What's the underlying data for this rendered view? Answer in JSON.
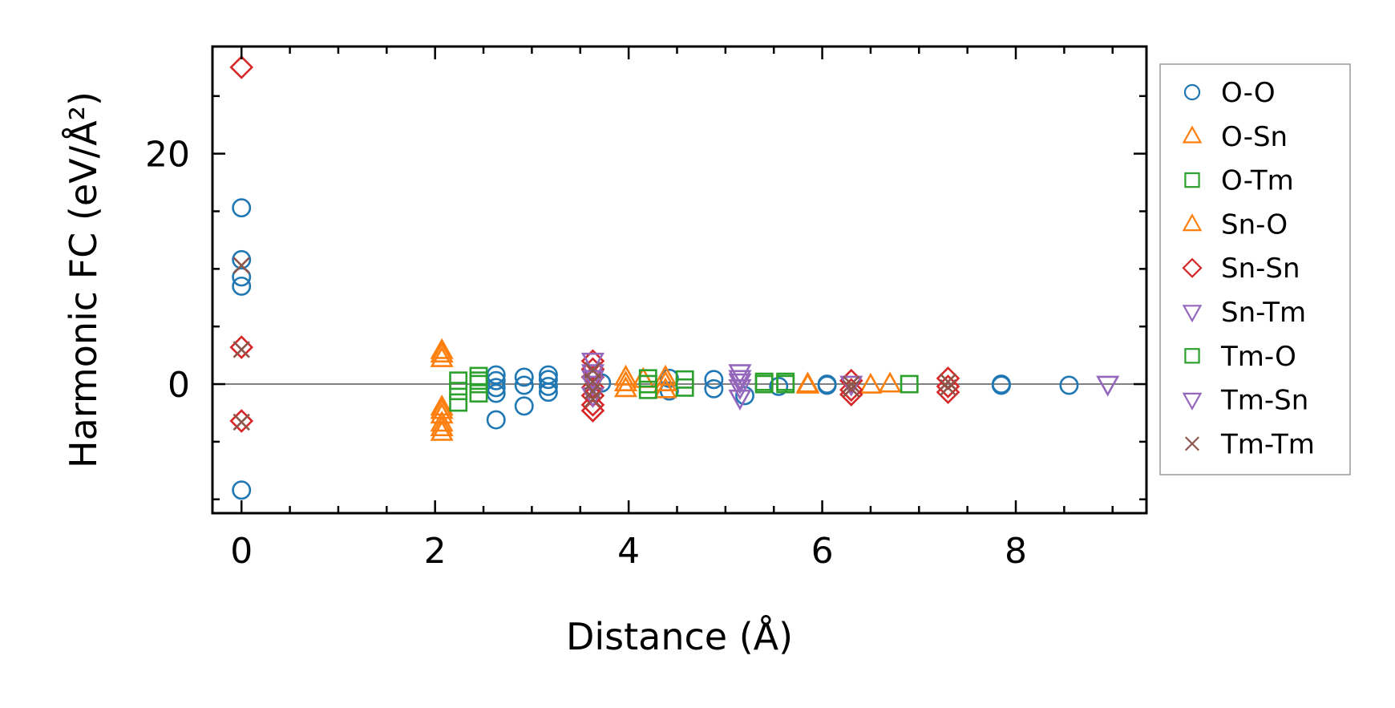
{
  "chart_data": {
    "type": "scatter",
    "title": "",
    "xlabel": "Distance (Å)",
    "ylabel": "Harmonic FC (eV/Å²)",
    "xlim": [
      -0.3,
      9.35
    ],
    "ylim": [
      -11.2,
      29.3
    ],
    "xticks": [
      0,
      2,
      4,
      6,
      8
    ],
    "yticks": [
      0,
      20
    ],
    "legend_position": "outside-right",
    "series": [
      {
        "name": "O-O",
        "marker": "circle",
        "color": "#1f77b4",
        "points": [
          [
            0,
            15.3
          ],
          [
            0,
            10.8
          ],
          [
            0,
            9.3
          ],
          [
            0,
            8.5
          ],
          [
            0,
            -9.2
          ],
          [
            2.63,
            0.8
          ],
          [
            2.63,
            0.3
          ],
          [
            2.63,
            -0.3
          ],
          [
            2.63,
            -0.8
          ],
          [
            2.63,
            -3.1
          ],
          [
            2.92,
            0.6
          ],
          [
            2.92,
            -0.1
          ],
          [
            2.92,
            -1.9
          ],
          [
            3.17,
            0.8
          ],
          [
            3.17,
            0.4
          ],
          [
            3.17,
            -0.2
          ],
          [
            3.17,
            -0.7
          ],
          [
            3.72,
            0.1
          ],
          [
            4.42,
            0.5
          ],
          [
            4.42,
            -0.6
          ],
          [
            4.88,
            0.4
          ],
          [
            4.88,
            -0.4
          ],
          [
            5.2,
            -1.0
          ],
          [
            5.55,
            -0.2
          ],
          [
            6.05,
            0.0
          ],
          [
            6.05,
            -0.1
          ],
          [
            7.85,
            0.0
          ],
          [
            7.85,
            -0.1
          ],
          [
            8.55,
            -0.1
          ]
        ]
      },
      {
        "name": "O-Sn",
        "marker": "triangle-up",
        "color": "#ff7f0e",
        "points": [
          [
            2.07,
            2.9
          ],
          [
            2.07,
            2.2
          ],
          [
            2.07,
            -2.0
          ],
          [
            2.07,
            -2.7
          ],
          [
            2.07,
            -3.4
          ],
          [
            2.07,
            -4.2
          ],
          [
            3.97,
            0.6
          ],
          [
            3.97,
            -0.4
          ],
          [
            4.15,
            0.4
          ],
          [
            4.38,
            0.6
          ],
          [
            4.38,
            -0.5
          ],
          [
            5.85,
            0.0
          ],
          [
            6.5,
            -0.1
          ],
          [
            6.7,
            0.0
          ]
        ]
      },
      {
        "name": "O-Tm",
        "marker": "square",
        "color": "#2ca02c",
        "points": [
          [
            2.24,
            0.3
          ],
          [
            2.24,
            -0.6
          ],
          [
            2.24,
            -1.6
          ],
          [
            2.45,
            0.7
          ],
          [
            2.45,
            0.0
          ],
          [
            2.45,
            -0.8
          ],
          [
            4.2,
            0.5
          ],
          [
            4.2,
            -0.5
          ],
          [
            4.58,
            0.4
          ],
          [
            4.58,
            -0.3
          ],
          [
            5.4,
            0.0
          ],
          [
            5.62,
            0.0
          ],
          [
            6.9,
            0.0
          ]
        ]
      },
      {
        "name": "Sn-O",
        "marker": "triangle-up",
        "color": "#ff7f0e",
        "points": [
          [
            2.07,
            2.6
          ],
          [
            2.07,
            -2.3
          ],
          [
            2.07,
            -3.8
          ],
          [
            3.97,
            0.1
          ],
          [
            4.38,
            0.1
          ],
          [
            5.85,
            -0.1
          ]
        ]
      },
      {
        "name": "Sn-Sn",
        "marker": "diamond",
        "color": "#d62728",
        "points": [
          [
            0,
            27.5
          ],
          [
            0,
            3.2
          ],
          [
            0,
            -3.2
          ],
          [
            3.63,
            2.0
          ],
          [
            3.63,
            1.3
          ],
          [
            3.63,
            0.6
          ],
          [
            3.63,
            -0.3
          ],
          [
            3.63,
            -1.0
          ],
          [
            3.63,
            -1.8
          ],
          [
            3.63,
            -2.3
          ],
          [
            6.3,
            0.3
          ],
          [
            6.3,
            -0.5
          ],
          [
            6.3,
            -0.9
          ],
          [
            7.3,
            0.5
          ],
          [
            7.3,
            -0.2
          ],
          [
            7.3,
            -0.7
          ]
        ]
      },
      {
        "name": "Sn-Tm",
        "marker": "triangle-down",
        "color": "#9467bd",
        "points": [
          [
            3.63,
            2.0
          ],
          [
            3.63,
            1.0
          ],
          [
            3.63,
            0.0
          ],
          [
            3.63,
            -1.0
          ],
          [
            5.15,
            1.0
          ],
          [
            5.15,
            0.2
          ],
          [
            5.15,
            -0.3
          ],
          [
            5.15,
            -1.2
          ],
          [
            8.95,
            0.0
          ]
        ]
      },
      {
        "name": "Tm-O",
        "marker": "square",
        "color": "#2ca02c",
        "points": [
          [
            2.45,
            0.3
          ],
          [
            4.2,
            0.0
          ],
          [
            5.4,
            0.2
          ],
          [
            5.62,
            0.2
          ]
        ]
      },
      {
        "name": "Tm-Sn",
        "marker": "triangle-down",
        "color": "#9467bd",
        "points": [
          [
            3.63,
            0.5
          ],
          [
            5.15,
            0.5
          ],
          [
            6.3,
            0.0
          ]
        ]
      },
      {
        "name": "Tm-Tm",
        "marker": "x",
        "color": "#8c564b",
        "points": [
          [
            0,
            10.3
          ],
          [
            0,
            3.0
          ],
          [
            0,
            -3.3
          ],
          [
            3.63,
            1.2
          ],
          [
            3.63,
            0.2
          ],
          [
            3.63,
            -0.6
          ],
          [
            3.63,
            -1.3
          ],
          [
            6.3,
            0.0
          ],
          [
            6.3,
            -0.4
          ],
          [
            7.3,
            0.2
          ],
          [
            7.3,
            -0.3
          ]
        ]
      }
    ]
  }
}
